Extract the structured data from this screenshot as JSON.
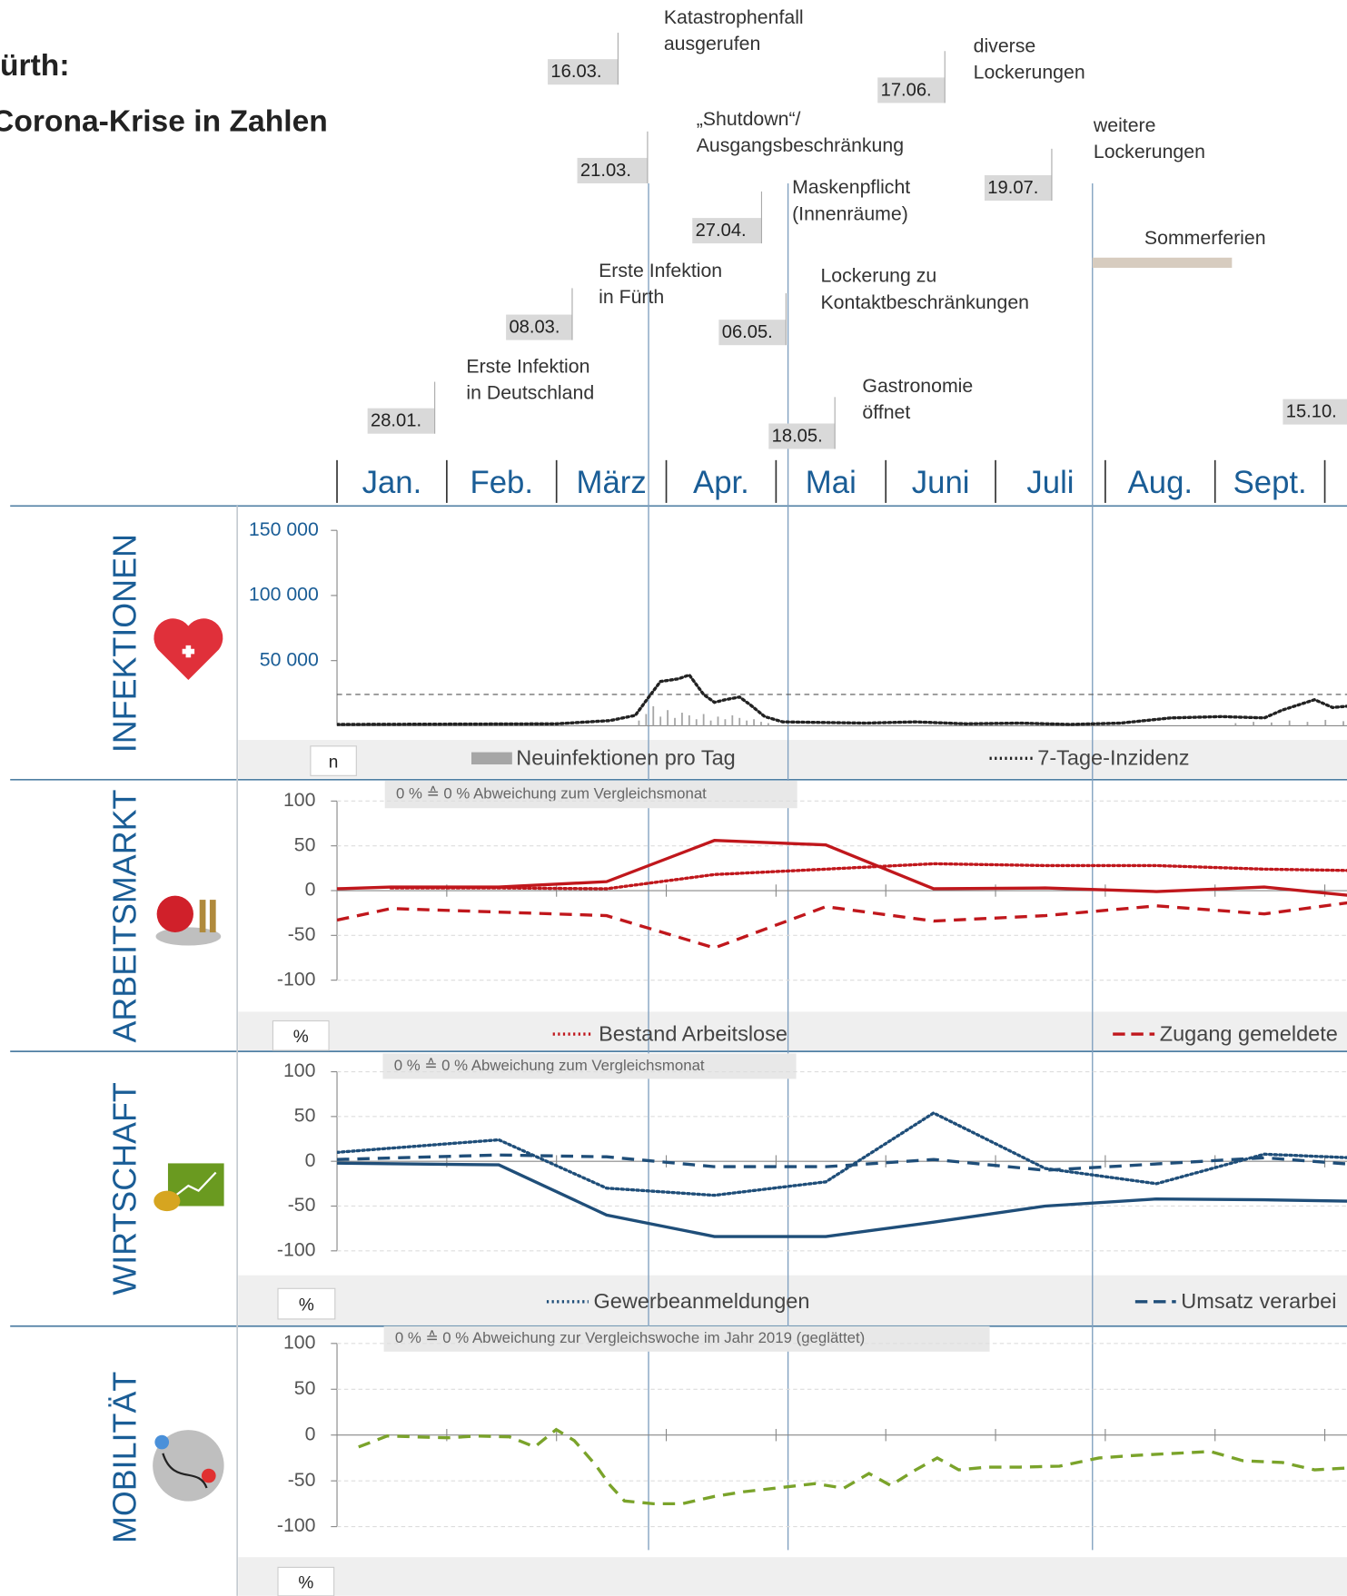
{
  "header": {
    "line1": "ürth:",
    "line2": "Corona-Krise in Zahlen"
  },
  "months": [
    "Jan.",
    "Feb.",
    "März",
    "Apr.",
    "Mai",
    "Juni",
    "Juli",
    "Aug.",
    "Sept."
  ],
  "events": [
    {
      "date": "16.03.",
      "label": [
        "Katastrophenfall",
        "ausgerufen"
      ]
    },
    {
      "date": "17.06.",
      "label": [
        "diverse",
        "Lockerungen"
      ]
    },
    {
      "date": "21.03.",
      "label": [
        "„Shutdown“/",
        "Ausgangsbeschränkung"
      ]
    },
    {
      "date": "19.07.",
      "label": [
        "weitere",
        "Lockerungen"
      ]
    },
    {
      "date": "27.04.",
      "label": [
        "Maskenpflicht",
        "(Innenräume)"
      ]
    },
    {
      "label": [
        "Sommerferien"
      ]
    },
    {
      "date": "08.03.",
      "label": [
        "Erste Infektion",
        "in Fürth"
      ]
    },
    {
      "date": "06.05.",
      "label": [
        "Lockerung zu",
        "Kontaktbeschränkungen"
      ]
    },
    {
      "date": "28.01.",
      "label": [
        "Erste Infektion",
        "in Deutschland"
      ]
    },
    {
      "date": "18.05.",
      "label": [
        "Gastronomie",
        "öffnet"
      ]
    },
    {
      "date": "15.10."
    }
  ],
  "sections": [
    "INFEKTIONEN",
    "ARBEITSMARKT",
    "WIRTSCHAFT",
    "MOBILITÄT"
  ],
  "chart_data": [
    {
      "type": "line",
      "unit": "n",
      "xlim": [
        0,
        281
      ],
      "ylim": [
        0,
        150000
      ],
      "yticks": [
        {
          "value": 50000,
          "label": "50 000"
        },
        {
          "value": 100000,
          "label": "100 000"
        },
        {
          "value": 150000,
          "label": "150 000"
        }
      ],
      "reference_line": 24000,
      "bars": {
        "name": "Neuinfektionen pro Tag",
        "color": "#a6a6a6",
        "x": [
          84,
          86,
          88,
          90,
          92,
          94,
          96,
          98,
          100,
          102,
          104,
          106,
          108,
          110,
          112,
          114,
          116,
          118,
          120,
          250,
          255,
          260,
          265,
          270,
          275,
          280
        ],
        "values": [
          4000,
          9000,
          15000,
          7000,
          12000,
          6000,
          10000,
          8000,
          5000,
          9000,
          4000,
          7000,
          5000,
          8000,
          6000,
          4000,
          5000,
          3000,
          2000,
          2000,
          3000,
          2500,
          4000,
          3000,
          4500,
          3500
        ]
      },
      "series": [
        {
          "name": "7-Tage-Inzidenz",
          "color": "#222222",
          "line_style": "dotted",
          "x": [
            0,
            61,
            76,
            83,
            87,
            90,
            95,
            98,
            102,
            105,
            108,
            112,
            115,
            119,
            124,
            147,
            161,
            175,
            190,
            204,
            218,
            232,
            246,
            258,
            263,
            272,
            277,
            281
          ],
          "values": [
            1000,
            1500,
            4000,
            8000,
            23000,
            34000,
            36000,
            39000,
            24000,
            18000,
            20000,
            22000,
            16000,
            7000,
            3000,
            2000,
            3000,
            1500,
            2000,
            1000,
            2000,
            6000,
            7000,
            6000,
            12000,
            20000,
            14000,
            15000
          ]
        }
      ]
    },
    {
      "type": "line",
      "unit": "%",
      "annotation": "0 % ≙ 0 % Abweichung zum Vergleichsmonat",
      "xlim": [
        0,
        281
      ],
      "ylim": [
        -100,
        100
      ],
      "yticks": [
        -100,
        -50,
        0,
        50,
        100
      ],
      "grid": true,
      "series": [
        {
          "name": "Bestand Arbeitslose",
          "color": "#c0171c",
          "line_style": "dotted",
          "x": [
            15,
            45,
            75,
            105,
            136,
            166,
            197,
            228,
            258,
            288
          ],
          "values": [
            3,
            3,
            2,
            18,
            24,
            30,
            28,
            28,
            24,
            22
          ]
        },
        {
          "name": "Zugang gemeldete",
          "color": "#c0171c",
          "line_style": "dashed",
          "x": [
            0,
            15,
            45,
            75,
            105,
            136,
            166,
            197,
            228,
            258,
            288
          ],
          "values": [
            -33,
            -20,
            -24,
            -28,
            -64,
            -18,
            -34,
            -28,
            -17,
            -26,
            -10
          ]
        },
        {
          "color": "#c0171c",
          "line_style": "solid",
          "x": [
            0,
            15,
            45,
            75,
            105,
            136,
            166,
            197,
            228,
            258,
            288
          ],
          "values": [
            2,
            4,
            4,
            10,
            56,
            51,
            2,
            3,
            -1,
            4,
            -8
          ]
        }
      ]
    },
    {
      "type": "line",
      "unit": "%",
      "annotation": "0 % ≙ 0 % Abweichung zum Vergleichsmonat",
      "xlim": [
        0,
        281
      ],
      "ylim": [
        -100,
        100
      ],
      "yticks": [
        -100,
        -50,
        0,
        50,
        100
      ],
      "grid": true,
      "series": [
        {
          "name": "Gewerbeanmeldungen",
          "color": "#1f4e79",
          "line_style": "dotted",
          "x": [
            0,
            45,
            75,
            105,
            136,
            166,
            197,
            228,
            258,
            288
          ],
          "values": [
            10,
            24,
            -30,
            -38,
            -23,
            54,
            -8,
            -25,
            8,
            3
          ]
        },
        {
          "name": "Umsatz verarbei",
          "color": "#1f4e79",
          "line_style": "dashed",
          "x": [
            0,
            45,
            75,
            105,
            136,
            166,
            197,
            228,
            258,
            288
          ],
          "values": [
            2,
            7,
            5,
            -6,
            -6,
            2,
            -10,
            -3,
            4,
            -5
          ]
        },
        {
          "color": "#1f4e79",
          "line_style": "solid",
          "x": [
            0,
            45,
            75,
            105,
            136,
            166,
            197,
            228,
            258,
            288
          ],
          "values": [
            -2,
            -4,
            -60,
            -84,
            -84,
            -68,
            -50,
            -42,
            -43,
            -45
          ]
        }
      ]
    },
    {
      "type": "line",
      "unit": "%",
      "annotation": "0 % ≙ 0 % Abweichung zur Vergleichswoche im Jahr 2019 (geglättet)",
      "xlim": [
        0,
        281
      ],
      "ylim": [
        -100,
        100
      ],
      "yticks": [
        -100,
        -50,
        0,
        50,
        100
      ],
      "grid": true,
      "series": [
        {
          "color": "#7aa32a",
          "line_style": "dashed",
          "x": [
            6,
            14,
            22,
            31,
            39,
            48,
            55,
            61,
            66,
            72,
            76,
            80,
            88,
            96,
            105,
            113,
            122,
            133,
            141,
            148,
            154,
            161,
            167,
            173,
            181,
            190,
            201,
            212,
            223,
            243,
            252,
            263,
            272,
            281
          ],
          "values": [
            -13,
            -1,
            -2,
            -3,
            -1,
            -2,
            -13,
            6,
            -6,
            -33,
            -55,
            -72,
            -75,
            -75,
            -67,
            -62,
            -58,
            -53,
            -58,
            -42,
            -55,
            -38,
            -25,
            -38,
            -35,
            -35,
            -34,
            -25,
            -22,
            -18,
            -28,
            -30,
            -38,
            -36
          ]
        }
      ]
    }
  ]
}
